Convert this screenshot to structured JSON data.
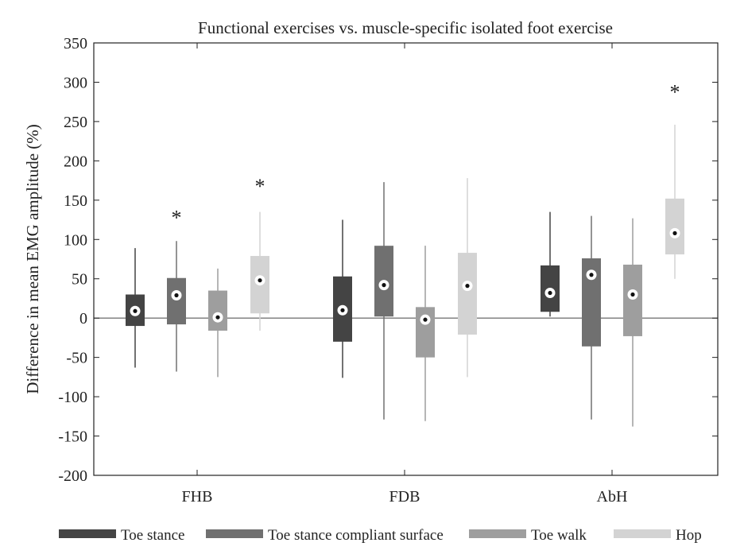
{
  "chart_data": {
    "type": "boxplot",
    "title": "Functional exercises vs. muscle-specific isolated foot exercise",
    "xlabel": "",
    "ylabel": "Difference in mean EMG amplitude (%)",
    "ylim": [
      -200,
      350
    ],
    "yticks": [
      -200,
      -150,
      -100,
      -50,
      0,
      50,
      100,
      150,
      200,
      250,
      300,
      350
    ],
    "categories": [
      "FHB",
      "FDB",
      "AbH"
    ],
    "legend_position": "bottom",
    "series": [
      {
        "name": "Toe stance",
        "color": "#444444",
        "boxes": [
          {
            "whisker_low": -63,
            "q1": -10,
            "median": 9,
            "q3": 30,
            "whisker_high": 89,
            "significant": false
          },
          {
            "whisker_low": -76,
            "q1": -30,
            "median": 10,
            "q3": 53,
            "whisker_high": 125,
            "significant": false
          },
          {
            "whisker_low": 2,
            "q1": 8,
            "median": 32,
            "q3": 67,
            "whisker_high": 135,
            "significant": false
          }
        ]
      },
      {
        "name": "Toe stance compliant surface",
        "color": "#707070",
        "boxes": [
          {
            "whisker_low": -68,
            "q1": -8,
            "median": 29,
            "q3": 51,
            "whisker_high": 98,
            "significant": true,
            "marker": 130
          },
          {
            "whisker_low": -129,
            "q1": 2,
            "median": 42,
            "q3": 92,
            "whisker_high": 173,
            "significant": false
          },
          {
            "whisker_low": -129,
            "q1": -36,
            "median": 55,
            "q3": 76,
            "whisker_high": 130,
            "significant": false
          }
        ]
      },
      {
        "name": "Toe walk",
        "color": "#9e9e9e",
        "boxes": [
          {
            "whisker_low": -75,
            "q1": -16,
            "median": 1,
            "q3": 35,
            "whisker_high": 63,
            "significant": false
          },
          {
            "whisker_low": -131,
            "q1": -50,
            "median": -2,
            "q3": 14,
            "whisker_high": 92,
            "significant": false
          },
          {
            "whisker_low": -138,
            "q1": -23,
            "median": 30,
            "q3": 68,
            "whisker_high": 127,
            "significant": false
          }
        ]
      },
      {
        "name": "Hop",
        "color": "#d3d3d3",
        "boxes": [
          {
            "whisker_low": -16,
            "q1": 6,
            "median": 48,
            "q3": 79,
            "whisker_high": 135,
            "significant": true,
            "marker": 170
          },
          {
            "whisker_low": -75,
            "q1": -21,
            "median": 41,
            "q3": 83,
            "whisker_high": 178,
            "significant": false
          },
          {
            "whisker_low": 50,
            "q1": 81,
            "median": 108,
            "q3": 152,
            "whisker_high": 246,
            "significant": true,
            "marker": 290
          }
        ]
      }
    ]
  }
}
